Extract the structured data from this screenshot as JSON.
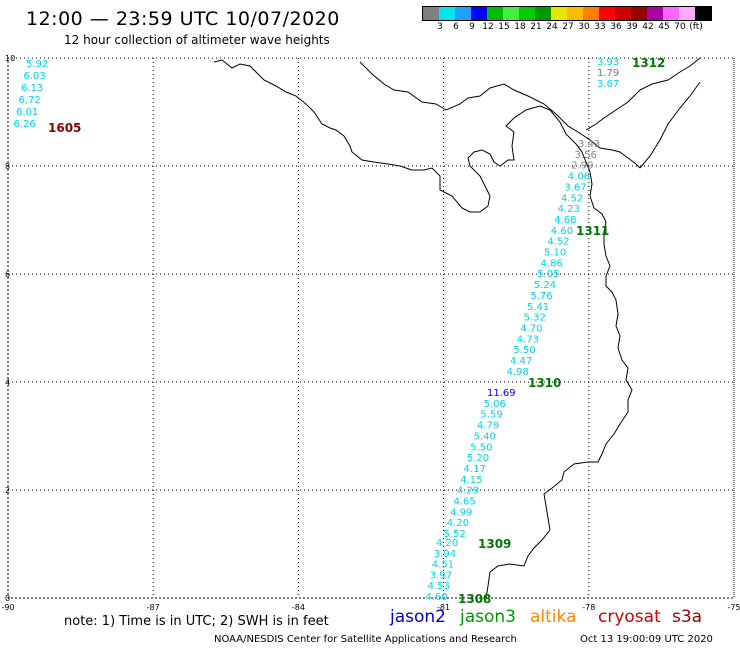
{
  "header": {
    "title": "12:00 — 23:59 UTC 10/07/2020",
    "subtitle": "12 hour collection of altimeter wave heights"
  },
  "legend": {
    "colors": [
      "#808080",
      "#00e5ee",
      "#1ea0ff",
      "#0000ff",
      "#00bb00",
      "#44ee44",
      "#00cc00",
      "#009900",
      "#e5e500",
      "#ffbb00",
      "#ff7f00",
      "#ff0000",
      "#cc0000",
      "#990000",
      "#aa00aa",
      "#ff66ff",
      "#ffaaff",
      "#000000"
    ],
    "labels": [
      "3",
      "6",
      "9",
      "12",
      "15",
      "18",
      "21",
      "24",
      "27",
      "30",
      "33",
      "36",
      "39",
      "42",
      "45",
      "70",
      "(ft)"
    ]
  },
  "axes": {
    "x_ticks": [
      "-90",
      "-87",
      "-84",
      "-81",
      "-78",
      "-75"
    ],
    "y_ticks": [
      "10",
      "8",
      "6",
      "4",
      "2",
      "0"
    ]
  },
  "tracks": [
    {
      "id": "1605",
      "id_color": "#880000",
      "color": "#00d5e5",
      "points": [
        "5.92",
        "6.03",
        "6.13",
        "6.72",
        "6.01",
        "6.26"
      ]
    },
    {
      "id": "1312",
      "id_color": "#007700",
      "color": "#00d5e5",
      "points": [
        "3.93",
        "1.79",
        "3.67"
      ]
    },
    {
      "id": "1311",
      "id_color": "#007700",
      "color": "#00d5e5",
      "points": [
        "3.43",
        "3.56",
        "2.99",
        "4.06",
        "3.67",
        "4.52",
        "4.23",
        "4.68",
        "4.60",
        "4.52",
        "5.10",
        "4.86",
        "5.05",
        "5.24",
        "5.76",
        "5.41",
        "5.32",
        "4.70",
        "4.73",
        "5.50",
        "4.47",
        "4.98"
      ]
    },
    {
      "id": "1310",
      "id_color": "#007700",
      "color": "#00d5e5",
      "points": [
        "11.69",
        "5.06",
        "5.59",
        "4.79",
        "5.40",
        "5.50",
        "5.20",
        "4.17",
        "4.15",
        "4.29",
        "4.65",
        "4.99",
        "4.20",
        "5.52"
      ]
    },
    {
      "id": "1309",
      "id_color": "#007700",
      "color": "#00d5e5",
      "points": [
        "4.20",
        "3.94",
        "4.51",
        "3.97",
        "4.53",
        "4.60"
      ]
    },
    {
      "id": "1308",
      "id_color": "#007700",
      "color": "#00d5e5",
      "points": []
    }
  ],
  "footer": {
    "note": "note: 1) Time is in UTC; 2) SWH is in feet",
    "missions": [
      {
        "name": "jason2",
        "color": "#0000cc"
      },
      {
        "name": "jason3",
        "color": "#009900"
      },
      {
        "name": "altika",
        "color": "#ff8800"
      },
      {
        "name": "cryosat",
        "color": "#cc0000"
      },
      {
        "name": "s3a",
        "color": "#990000"
      }
    ],
    "credit": "NOAA/NESDIS Center for Satellite Applications and Research",
    "stamp": "Oct 13 19:00:09 UTC 2020"
  }
}
